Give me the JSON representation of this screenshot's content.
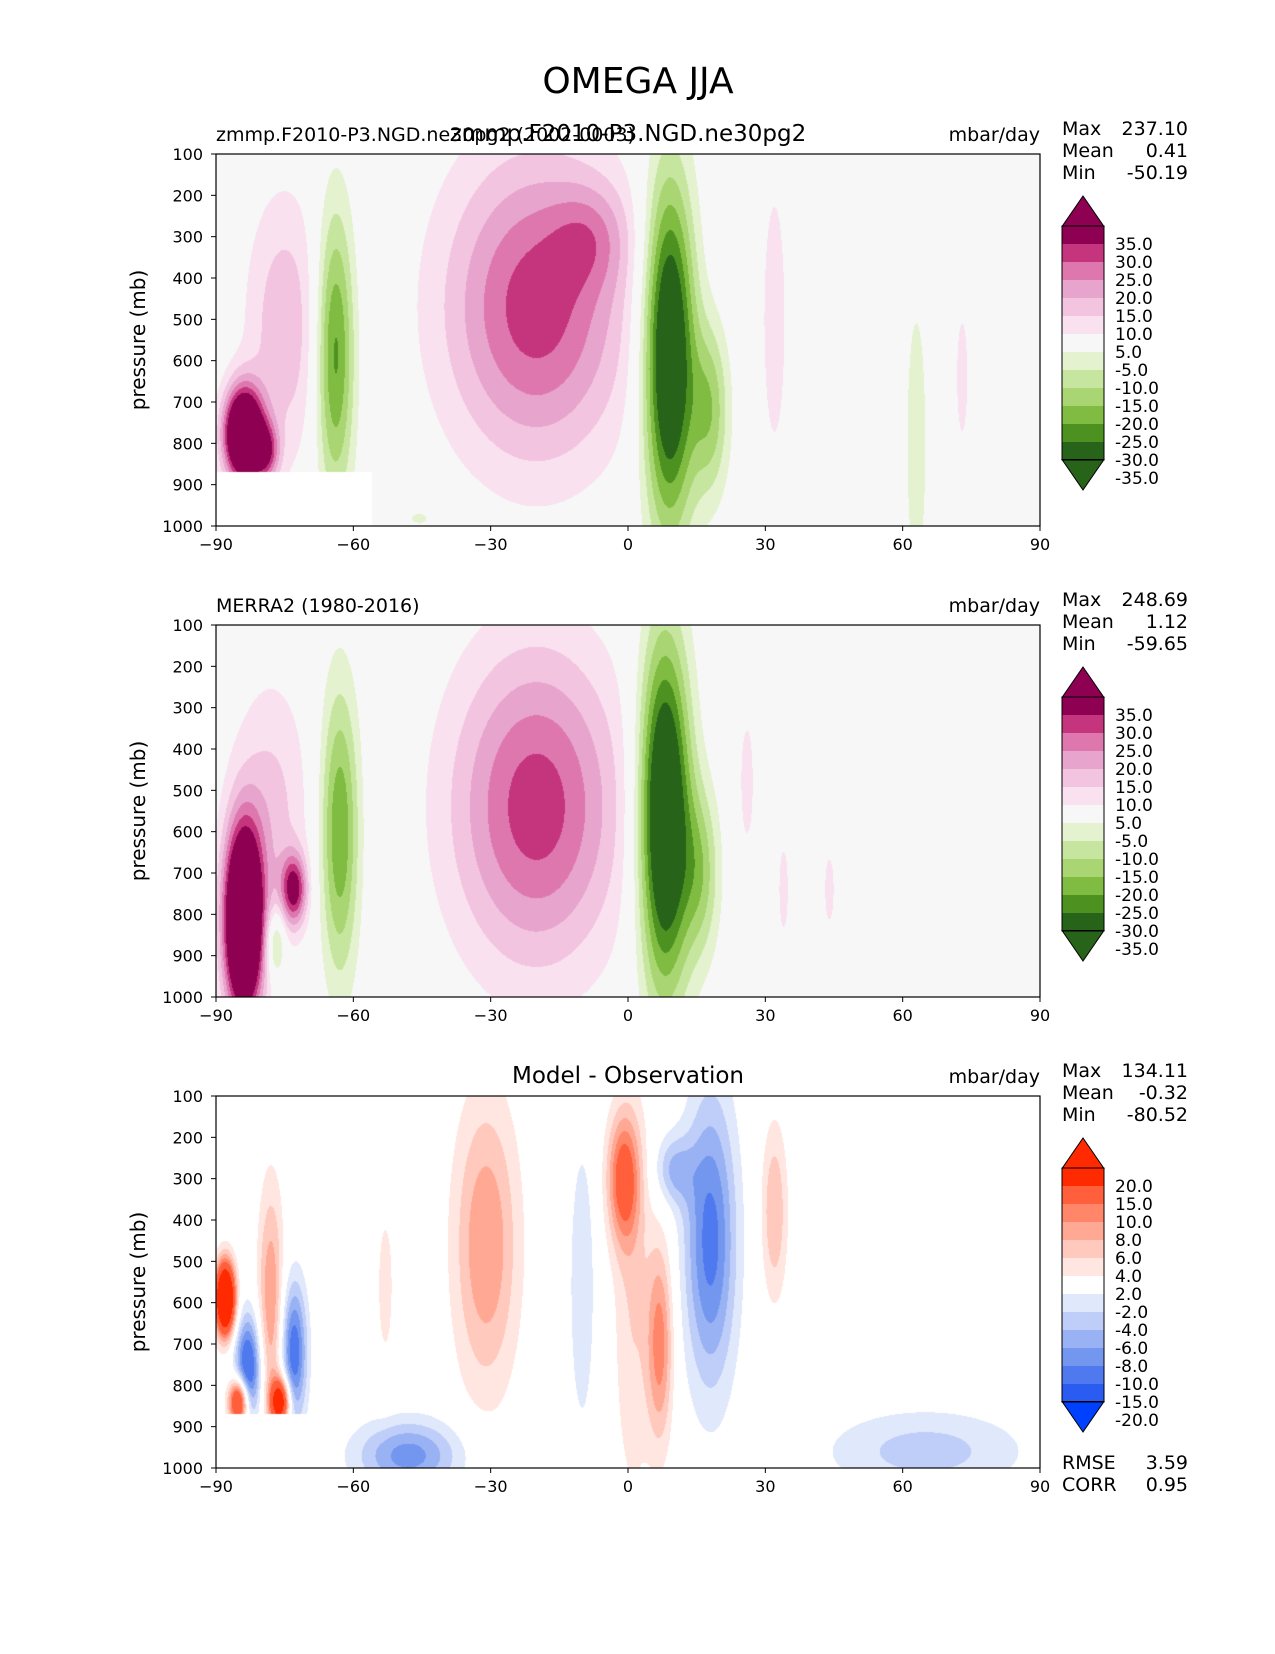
{
  "figure_title": "OMEGA JJA",
  "colors": {
    "field_levels": [
      "#276419",
      "#276419",
      "#4d9221",
      "#7fbc41",
      "#a9d672",
      "#c6e6a0",
      "#e4f2cf",
      "#f7f7f7",
      "#f9e1ef",
      "#f2c4e0",
      "#e7a4cd",
      "#de77ae",
      "#c5357e",
      "#8e0152",
      "#8e0152"
    ],
    "diff_levels": [
      "#0040ff",
      "#2a5cf2",
      "#4f79ee",
      "#7396ef",
      "#99b2f3",
      "#bfcef8",
      "#e0e8fc",
      "#ffffff",
      "#ffe6e0",
      "#ffc9bd",
      "#ffa995",
      "#ff8669",
      "#ff5f3a",
      "#ff2a00",
      "#ff2a00"
    ]
  },
  "chart_data": [
    {
      "type": "contour",
      "panel": "test",
      "title_left": "zmmp.F2010-P3.NGD.ne30pg2 (2002-0003)",
      "title_center": "zmmp.F2010-P3.NGD.ne30pg2",
      "units": "mbar/day",
      "stats": {
        "max_label": "Max",
        "max": "237.10",
        "mean_label": "Mean",
        "mean": "0.41",
        "min_label": "Min",
        "min": "-50.19"
      },
      "ylabel": "pressure (mb)",
      "x_ticks": [
        "−90",
        "−60",
        "−30",
        "0",
        "30",
        "60",
        "90"
      ],
      "y_ticks": [
        "100",
        "200",
        "300",
        "400",
        "500",
        "600",
        "700",
        "800",
        "900",
        "1000"
      ],
      "xlim": [
        -90,
        90
      ],
      "ylim": [
        1000,
        100
      ],
      "colorbar_labels": [
        "35.0",
        "30.0",
        "25.0",
        "20.0",
        "15.0",
        "10.0",
        "5.0",
        "-5.0",
        "-10.0",
        "-15.0",
        "-20.0",
        "-25.0",
        "-30.0",
        "-35.0"
      ],
      "blobs": [
        {
          "lat": -20,
          "p": 470,
          "sx": 14,
          "sy": 260,
          "v": 28
        },
        {
          "lat": -8,
          "p": 300,
          "sx": 6,
          "sy": 90,
          "v": 10
        },
        {
          "lat": 9,
          "p": 580,
          "sx": 4,
          "sy": 300,
          "v": -45
        },
        {
          "lat": 18,
          "p": 720,
          "sx": 3,
          "sy": 150,
          "v": -18
        },
        {
          "lat": -75,
          "p": 520,
          "sx": 6,
          "sy": 230,
          "v": 14
        },
        {
          "lat": -84,
          "p": 780,
          "sx": 3,
          "sy": 80,
          "v": 60
        },
        {
          "lat": -79,
          "p": 820,
          "sx": 2,
          "sy": 50,
          "v": 22
        },
        {
          "lat": -64,
          "p": 580,
          "sx": 3,
          "sy": 250,
          "v": -28
        },
        {
          "lat": 32,
          "p": 500,
          "sx": 2,
          "sy": 250,
          "v": 9
        },
        {
          "lat": 63,
          "p": 800,
          "sx": 2,
          "sy": 300,
          "v": -8
        },
        {
          "lat": 73,
          "p": 640,
          "sx": 1,
          "sy": 120,
          "v": 9
        },
        {
          "lat": -45,
          "p": 980,
          "sx": 6,
          "sy": 40,
          "v": -6
        }
      ],
      "mask": {
        "lat_max": -56,
        "p_min": 870
      }
    },
    {
      "type": "contour",
      "panel": "reference",
      "title_left": "MERRA2 (1980-2016)",
      "title_center": "",
      "units": "mbar/day",
      "stats": {
        "max_label": "Max",
        "max": "248.69",
        "mean_label": "Mean",
        "mean": "1.12",
        "min_label": "Min",
        "min": "-59.65"
      },
      "ylabel": "pressure (mb)",
      "x_ticks": [
        "−90",
        "−60",
        "−30",
        "0",
        "30",
        "60",
        "90"
      ],
      "y_ticks": [
        "100",
        "200",
        "300",
        "400",
        "500",
        "600",
        "700",
        "800",
        "900",
        "1000"
      ],
      "xlim": [
        -90,
        90
      ],
      "ylim": [
        1000,
        100
      ],
      "colorbar_labels": [
        "35.0",
        "30.0",
        "25.0",
        "20.0",
        "15.0",
        "10.0",
        "5.0",
        "-5.0",
        "-10.0",
        "-15.0",
        "-20.0",
        "-25.0",
        "-30.0",
        "-35.0"
      ],
      "blobs": [
        {
          "lat": -20,
          "p": 540,
          "sx": 13,
          "sy": 270,
          "v": 28
        },
        {
          "lat": 8,
          "p": 560,
          "sx": 4,
          "sy": 300,
          "v": -48
        },
        {
          "lat": 16,
          "p": 700,
          "sx": 3,
          "sy": 150,
          "v": -16
        },
        {
          "lat": -78,
          "p": 560,
          "sx": 6,
          "sy": 230,
          "v": 12
        },
        {
          "lat": -84,
          "p": 820,
          "sx": 3,
          "sy": 160,
          "v": 65
        },
        {
          "lat": -73,
          "p": 740,
          "sx": 2,
          "sy": 60,
          "v": 30
        },
        {
          "lat": -63,
          "p": 600,
          "sx": 3,
          "sy": 250,
          "v": -25
        },
        {
          "lat": -77,
          "p": 870,
          "sx": 1.5,
          "sy": 60,
          "v": -18
        },
        {
          "lat": 26,
          "p": 480,
          "sx": 1.5,
          "sy": 150,
          "v": 7
        },
        {
          "lat": 34,
          "p": 740,
          "sx": 1.5,
          "sy": 150,
          "v": 6
        },
        {
          "lat": 44,
          "p": 740,
          "sx": 1.5,
          "sy": 120,
          "v": 6
        }
      ],
      "mask": null
    },
    {
      "type": "contour",
      "panel": "difference",
      "title_left": "",
      "title_center": "Model - Observation",
      "units": "mbar/day",
      "stats": {
        "max_label": "Max",
        "max": "134.11",
        "mean_label": "Mean",
        "mean": "-0.32",
        "min_label": "Min",
        "min": "-80.52"
      },
      "extra_stats": {
        "rmse_label": "RMSE",
        "rmse": "3.59",
        "corr_label": "CORR",
        "corr": "0.95"
      },
      "ylabel": "pressure (mb)",
      "x_ticks": [
        "−90",
        "−60",
        "−30",
        "0",
        "30",
        "60",
        "90"
      ],
      "y_ticks": [
        "100",
        "200",
        "300",
        "400",
        "500",
        "600",
        "700",
        "800",
        "900",
        "1000"
      ],
      "xlim": [
        -90,
        90
      ],
      "ylim": [
        1000,
        100
      ],
      "colorbar_labels": [
        "20.0",
        "15.0",
        "10.0",
        "8.0",
        "6.0",
        "4.0",
        "2.0",
        "-2.0",
        "-4.0",
        "-6.0",
        "-8.0",
        "-10.0",
        "-15.0",
        "-20.0"
      ],
      "blobs": [
        {
          "lat": -31,
          "p": 460,
          "sx": 5,
          "sy": 250,
          "v": 8
        },
        {
          "lat": -1,
          "p": 300,
          "sx": 2.5,
          "sy": 110,
          "v": 11
        },
        {
          "lat": 7,
          "p": 700,
          "sx": 2,
          "sy": 170,
          "v": 9
        },
        {
          "lat": 1,
          "p": 600,
          "sx": 3,
          "sy": 350,
          "v": 4
        },
        {
          "lat": 18,
          "p": 450,
          "sx": 4,
          "sy": 250,
          "v": -11
        },
        {
          "lat": 10,
          "p": 280,
          "sx": 3,
          "sy": 60,
          "v": -6
        },
        {
          "lat": 32,
          "p": 380,
          "sx": 2,
          "sy": 150,
          "v": 6
        },
        {
          "lat": -83,
          "p": 760,
          "sx": 2,
          "sy": 90,
          "v": -14
        },
        {
          "lat": -73,
          "p": 720,
          "sx": 2,
          "sy": 120,
          "v": -12
        },
        {
          "lat": -78,
          "p": 600,
          "sx": 2,
          "sy": 200,
          "v": 8
        },
        {
          "lat": -88,
          "p": 590,
          "sx": 1.5,
          "sy": 60,
          "v": 30
        },
        {
          "lat": -85,
          "p": 840,
          "sx": 1.5,
          "sy": 40,
          "v": 20
        },
        {
          "lat": -76,
          "p": 840,
          "sx": 1.5,
          "sy": 40,
          "v": 20
        },
        {
          "lat": -48,
          "p": 970,
          "sx": 8,
          "sy": 60,
          "v": -9
        },
        {
          "lat": 65,
          "p": 960,
          "sx": 15,
          "sy": 70,
          "v": -5
        },
        {
          "lat": -10,
          "p": 560,
          "sx": 2,
          "sy": 250,
          "v": -4
        },
        {
          "lat": -53,
          "p": 560,
          "sx": 1.5,
          "sy": 150,
          "v": 3
        }
      ],
      "mask": {
        "lat_max": -63,
        "p_min": 870
      }
    }
  ]
}
